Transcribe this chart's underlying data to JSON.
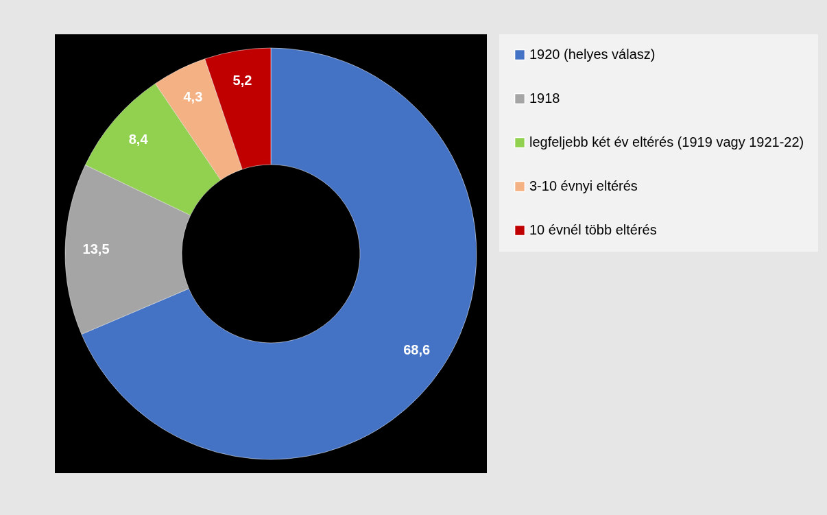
{
  "chart_data": {
    "type": "donut",
    "categories": [
      "1920 (helyes válasz)",
      "1918",
      "legfeljebb két év eltérés (1919 vagy 1921-22)",
      "3-10 évnyi eltérés",
      "10 évnél több eltérés"
    ],
    "values": [
      68.6,
      13.5,
      8.4,
      4.3,
      5.2
    ],
    "colors": [
      "#4472c4",
      "#a5a5a5",
      "#92d050",
      "#f4b183",
      "#c00000"
    ],
    "value_labels": [
      "68,6",
      "13,5",
      "8,4",
      "4,3",
      "5,2"
    ],
    "legend": "right"
  }
}
